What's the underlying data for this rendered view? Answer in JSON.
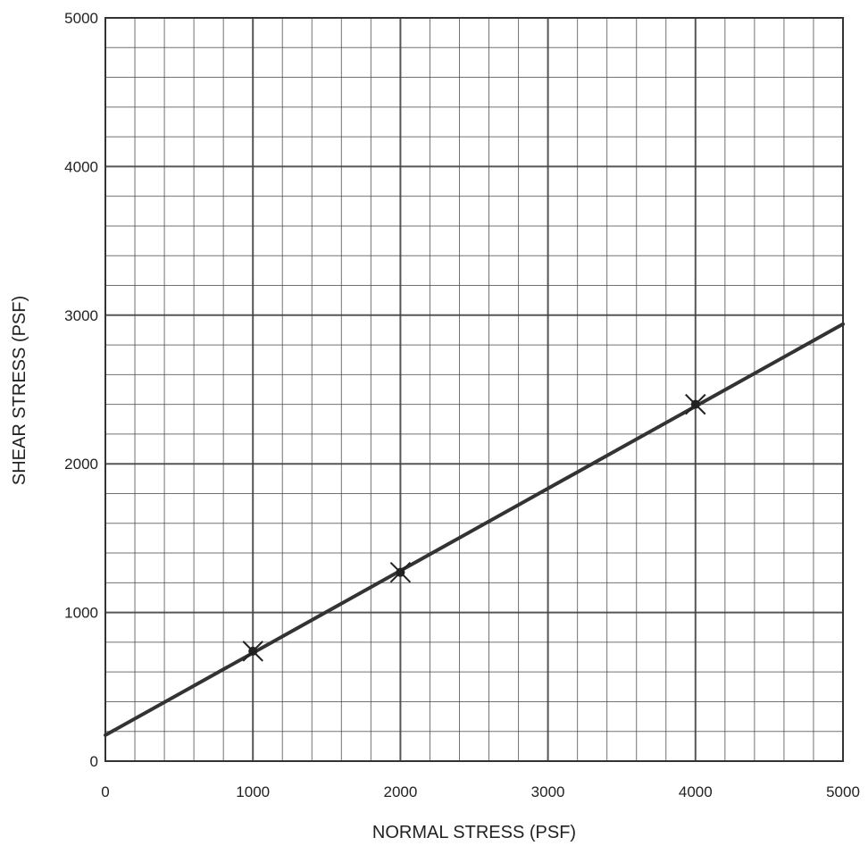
{
  "chart_data": {
    "type": "scatter",
    "title": "",
    "xlabel": "NORMAL STRESS (PSF)",
    "ylabel": "SHEAR STRESS (PSF)",
    "xlim": [
      0,
      5000
    ],
    "ylim": [
      0,
      5000
    ],
    "x_ticks": [
      "0",
      "1000",
      "2000",
      "3000",
      "4000",
      "5000"
    ],
    "y_ticks": [
      "0",
      "1000",
      "2000",
      "3000",
      "4000",
      "5000"
    ],
    "grid": true,
    "grid_minor_step": 200,
    "grid_major_step": 1000,
    "series": [
      {
        "marker": "x",
        "points": [
          {
            "x": 1000,
            "y": 740
          },
          {
            "x": 2000,
            "y": 1270
          },
          {
            "x": 4000,
            "y": 2400
          }
        ]
      }
    ],
    "fit_line": {
      "x": [
        0,
        5000
      ],
      "y": [
        175,
        2940
      ]
    },
    "colors": {
      "grid": "#444444",
      "line": "#333333",
      "marker": "#222222"
    }
  }
}
